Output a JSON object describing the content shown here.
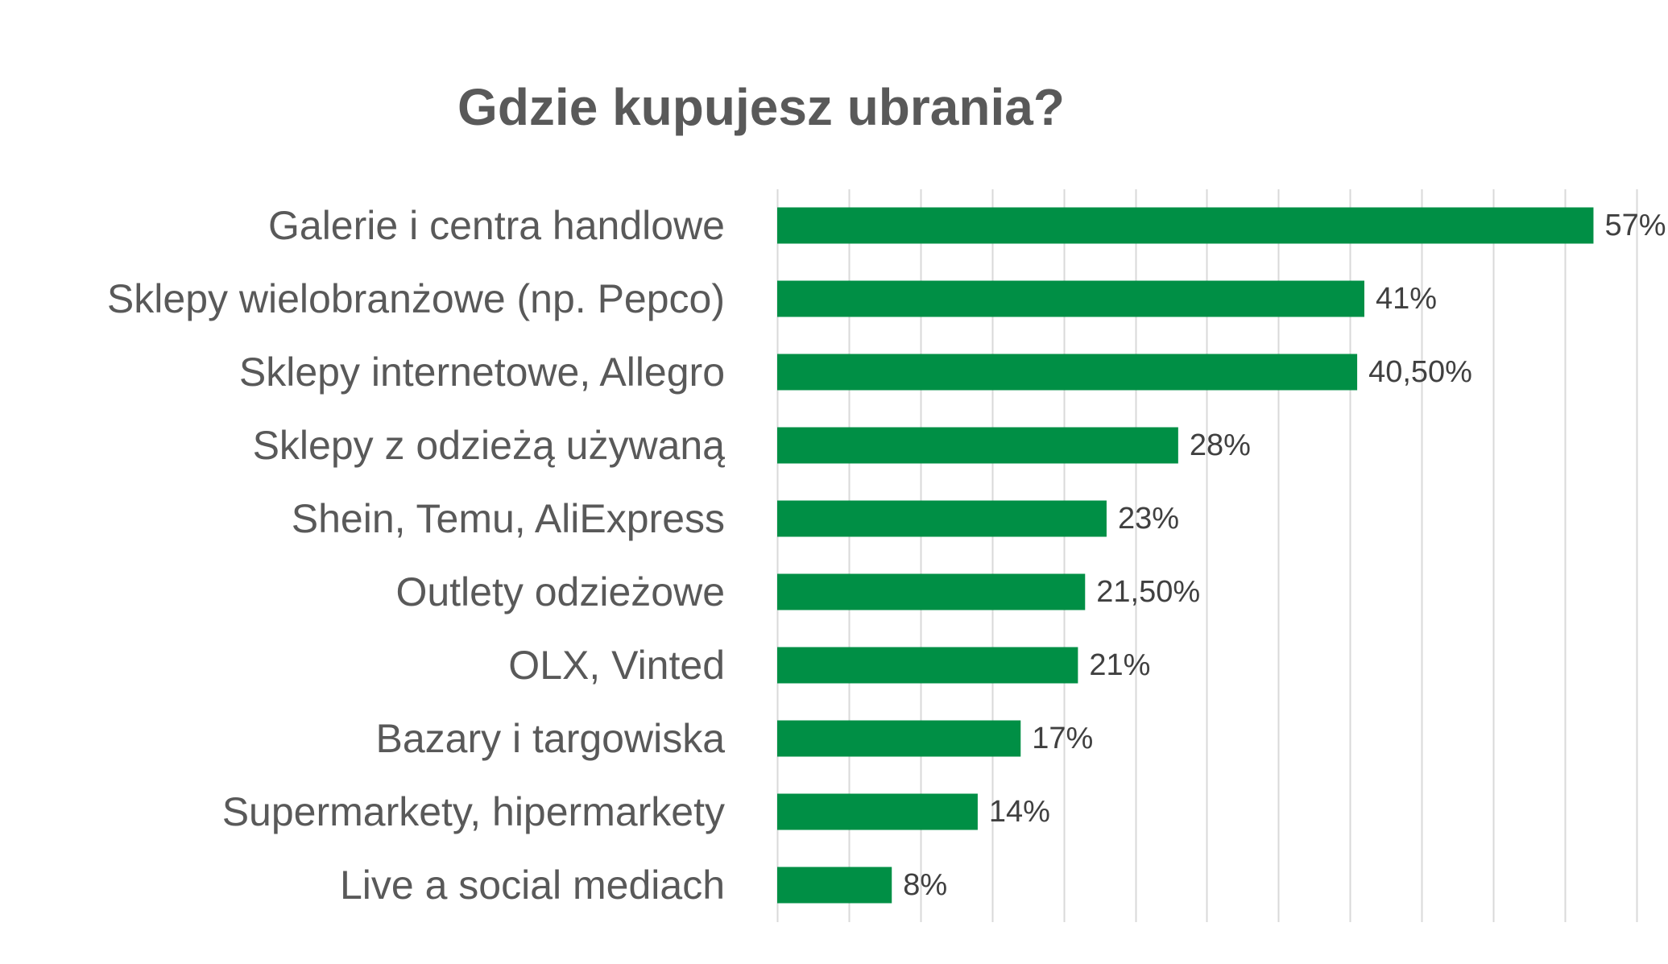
{
  "chart_data": {
    "type": "bar",
    "orientation": "horizontal",
    "title": "Gdzie kupujesz ubrania?",
    "xlabel": "",
    "ylabel": "",
    "xlim": [
      0,
      60
    ],
    "grid_step": 5,
    "grid": true,
    "legend": "none",
    "bar_color": "#008F45",
    "categories": [
      "Galerie i centra handlowe",
      "Sklepy wielobranżowe (np. Pepco)",
      "Sklepy internetowe, Allegro",
      "Sklepy z odzieżą używaną",
      "Shein, Temu, AliExpress",
      "Outlety odzieżowe",
      "OLX, Vinted",
      "Bazary i targowiska",
      "Supermarkety, hipermarkety",
      "Live a social mediach"
    ],
    "values": [
      57,
      41,
      40.5,
      28,
      23,
      21.5,
      21,
      17,
      14,
      8
    ],
    "data_labels": [
      "57%",
      "41%",
      "40,50%",
      "28%",
      "23%",
      "21,50%",
      "21%",
      "17%",
      "14%",
      "8%"
    ]
  },
  "colors": {
    "title": "#595959",
    "category_label": "#595959",
    "value_label": "#404040",
    "gridline": "#D9D9D9"
  }
}
